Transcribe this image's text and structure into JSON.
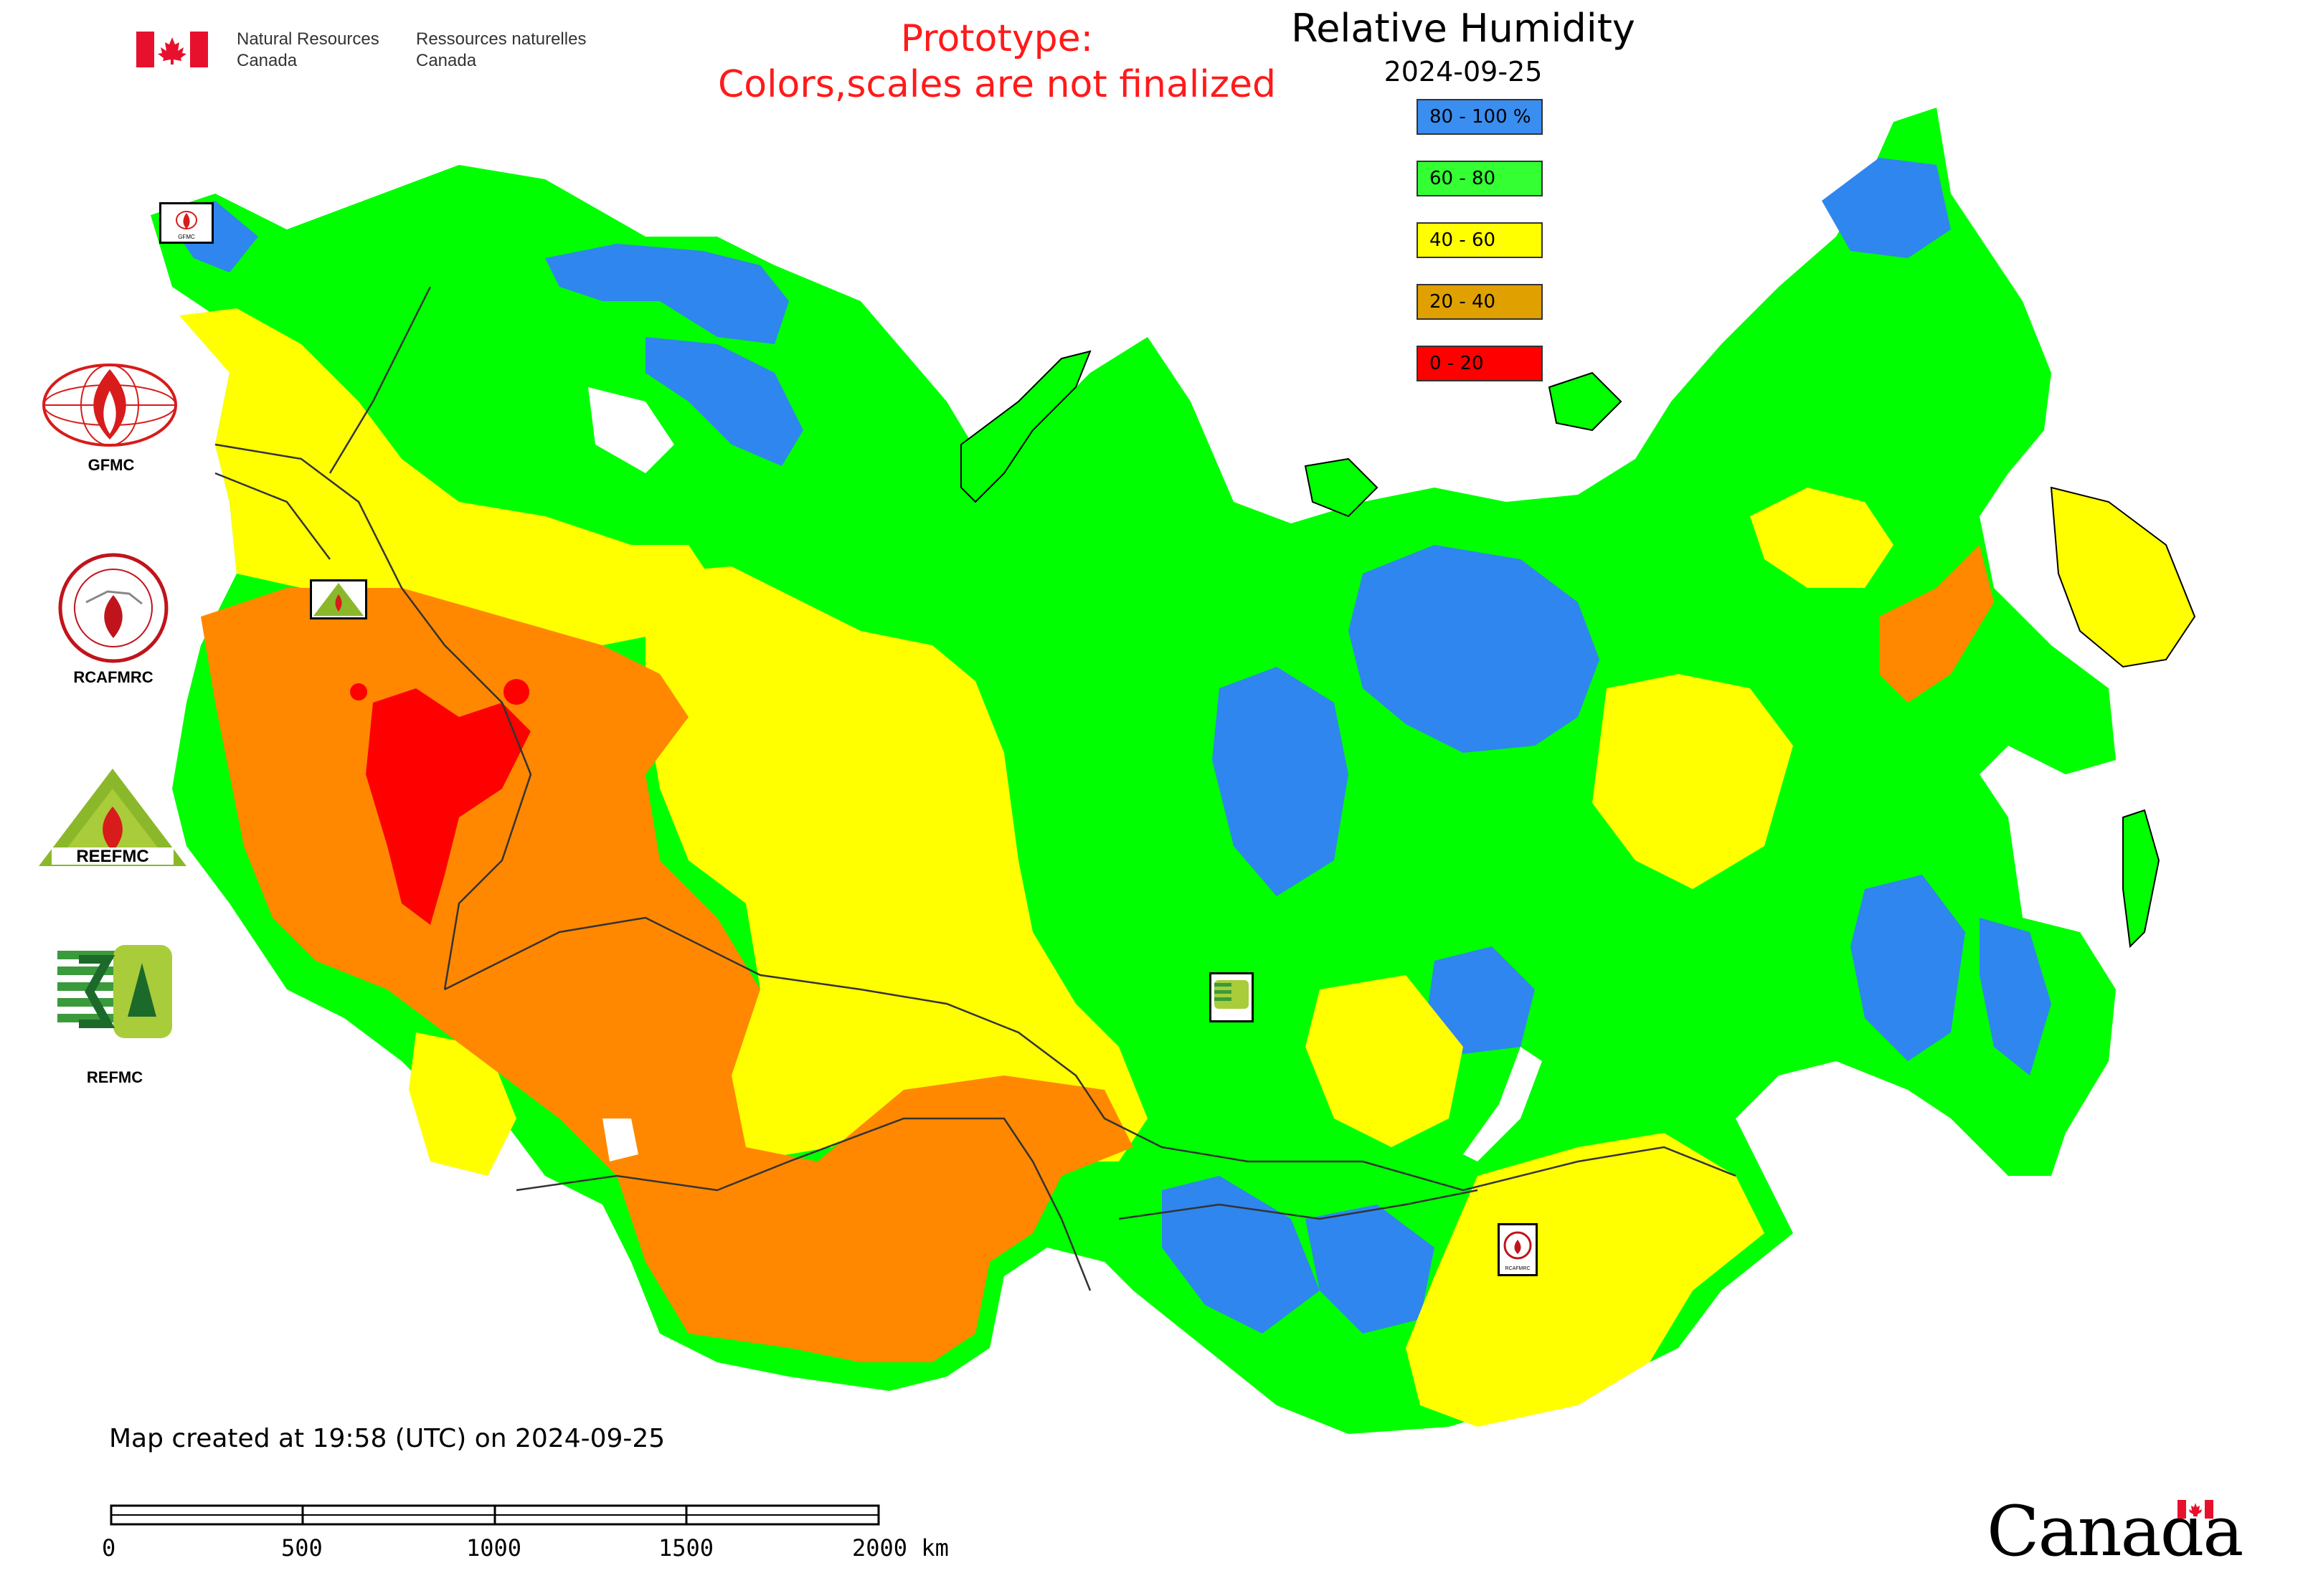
{
  "header": {
    "dept_en_line1": "Natural Resources",
    "dept_en_line2": "Canada",
    "dept_fr_line1": "Ressources naturelles",
    "dept_fr_line2": "Canada",
    "prototype_line1": "Prototype:",
    "prototype_line2": "Colors,scales are not finalized"
  },
  "map": {
    "title": "Relative Humidity",
    "date": "2024-09-25",
    "legend": [
      {
        "label": "80 - 100 %",
        "color": "#3a8ef0"
      },
      {
        "label": "60 - 80",
        "color": "#33ff33"
      },
      {
        "label": "40 - 60",
        "color": "#ffff00"
      },
      {
        "label": "20 - 40",
        "color": "#e0a000"
      },
      {
        "label": "0 - 20",
        "color": "#ff0000"
      }
    ],
    "colors": {
      "blue": "#2f86ee",
      "green": "#00ff00",
      "yellow": "#ffff00",
      "orange": "#ff8800",
      "red": "#ff0000",
      "border": "#333333"
    }
  },
  "logos": {
    "gfmc": "GFMC",
    "rcafmrc": "RCAFMRC",
    "reefmc_mark": "REEFMC",
    "refmc": "REFMC",
    "map_marker_gfmc": "GFMC",
    "map_marker_rcafmrc": "RCAFMRC"
  },
  "footer": {
    "created": "Map created at 19:58 (UTC) on 2024-09-25",
    "scale_ticks": [
      "0",
      "500",
      "1000",
      "1500",
      "2000 km"
    ],
    "wordmark": "Canada"
  }
}
